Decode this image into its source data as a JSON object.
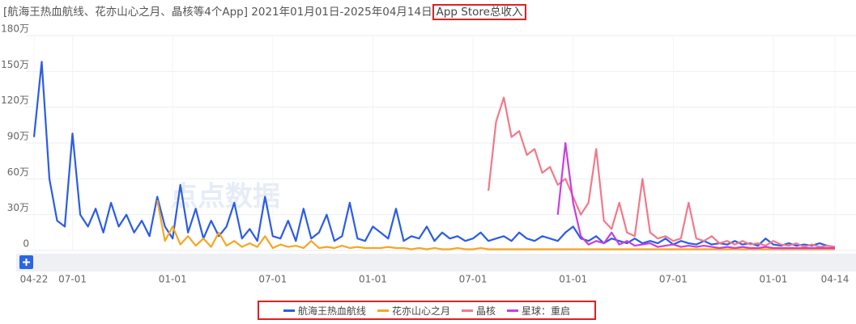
{
  "chart_data": {
    "type": "line",
    "title": "[航海王热血航线、花亦山心之月、晶核等4个App] 2021年01月01日-2025年04月14日",
    "subtitle": "App Store总收入",
    "watermark": "点点数据",
    "categories": [
      "04-22",
      null,
      null,
      null,
      null,
      "07-01",
      null,
      null,
      null,
      null,
      null,
      null,
      null,
      null,
      null,
      null,
      null,
      null,
      "01-01",
      null,
      null,
      null,
      null,
      null,
      null,
      null,
      null,
      null,
      null,
      null,
      null,
      "07-01",
      null,
      null,
      null,
      null,
      null,
      null,
      null,
      null,
      null,
      null,
      null,
      null,
      "01-01",
      null,
      null,
      null,
      null,
      null,
      null,
      null,
      null,
      null,
      null,
      null,
      null,
      "07-01",
      null,
      null,
      null,
      null,
      null,
      null,
      null,
      null,
      null,
      null,
      null,
      null,
      "01-01",
      null,
      null,
      null,
      null,
      null,
      null,
      null,
      null,
      null,
      null,
      null,
      null,
      "07-01",
      null,
      null,
      null,
      null,
      null,
      null,
      null,
      null,
      null,
      null,
      null,
      null,
      "01-01",
      null,
      null,
      null,
      null,
      null,
      null,
      null,
      "04-14"
    ],
    "series": [
      {
        "name": "航海王热血航线",
        "color": "#2b5ce6",
        "values": [
          95,
          158,
          60,
          25,
          20,
          98,
          30,
          20,
          35,
          15,
          40,
          20,
          30,
          15,
          25,
          12,
          45,
          20,
          10,
          55,
          15,
          35,
          10,
          25,
          12,
          20,
          40,
          10,
          18,
          8,
          45,
          12,
          10,
          25,
          8,
          35,
          10,
          15,
          30,
          8,
          12,
          40,
          10,
          8,
          20,
          15,
          10,
          35,
          8,
          12,
          10,
          20,
          8,
          15,
          10,
          12,
          8,
          10,
          15,
          8,
          10,
          12,
          8,
          15,
          10,
          8,
          12,
          10,
          8,
          15,
          20,
          10,
          8,
          12,
          6,
          10,
          8,
          6,
          10,
          6,
          8,
          6,
          10,
          5,
          8,
          6,
          5,
          8,
          5,
          6,
          5,
          8,
          5,
          6,
          4,
          10,
          5,
          4,
          6,
          4,
          5,
          4,
          6,
          4,
          3
        ]
      },
      {
        "name": "花亦山心之月",
        "color": "#f5a623",
        "values": [
          null,
          null,
          null,
          null,
          null,
          null,
          null,
          null,
          null,
          null,
          null,
          null,
          null,
          null,
          null,
          null,
          42,
          8,
          20,
          5,
          12,
          4,
          10,
          3,
          15,
          4,
          8,
          3,
          6,
          3,
          12,
          2,
          5,
          3,
          4,
          2,
          8,
          2,
          3,
          2,
          4,
          2,
          3,
          2,
          2,
          2,
          3,
          2,
          2,
          1,
          2,
          1,
          2,
          1,
          1,
          2,
          1,
          1,
          2,
          1,
          1,
          1,
          1,
          1,
          1,
          1,
          1,
          1,
          1,
          1,
          1,
          1,
          1,
          1,
          1,
          1,
          1,
          1,
          1,
          1,
          1,
          1,
          1,
          1,
          1,
          1,
          1,
          1,
          1,
          1,
          1,
          1,
          1,
          1,
          1,
          1,
          1,
          1,
          1,
          1,
          1,
          1,
          1,
          1,
          1
        ]
      },
      {
        "name": "晶核",
        "color": "#f07a8a",
        "values": [
          null,
          null,
          null,
          null,
          null,
          null,
          null,
          null,
          null,
          null,
          null,
          null,
          null,
          null,
          null,
          null,
          null,
          null,
          null,
          null,
          null,
          null,
          null,
          null,
          null,
          null,
          null,
          null,
          null,
          null,
          null,
          null,
          null,
          null,
          null,
          null,
          null,
          null,
          null,
          null,
          null,
          null,
          null,
          null,
          null,
          null,
          null,
          null,
          null,
          null,
          null,
          null,
          null,
          null,
          null,
          null,
          null,
          null,
          null,
          50,
          108,
          128,
          95,
          100,
          80,
          85,
          65,
          70,
          55,
          60,
          45,
          30,
          40,
          85,
          25,
          18,
          40,
          15,
          12,
          60,
          15,
          10,
          12,
          8,
          10,
          40,
          10,
          8,
          12,
          6,
          8,
          5,
          8,
          5,
          6,
          4,
          8,
          5,
          4,
          6,
          3,
          5,
          3,
          4,
          3
        ]
      },
      {
        "name": "星球：重启",
        "color": "#c83ee0",
        "values": [
          null,
          null,
          null,
          null,
          null,
          null,
          null,
          null,
          null,
          null,
          null,
          null,
          null,
          null,
          null,
          null,
          null,
          null,
          null,
          null,
          null,
          null,
          null,
          null,
          null,
          null,
          null,
          null,
          null,
          null,
          null,
          null,
          null,
          null,
          null,
          null,
          null,
          null,
          null,
          null,
          null,
          null,
          null,
          null,
          null,
          null,
          null,
          null,
          null,
          null,
          null,
          null,
          null,
          null,
          null,
          null,
          null,
          null,
          null,
          null,
          null,
          null,
          null,
          null,
          null,
          null,
          null,
          null,
          30,
          90,
          40,
          12,
          5,
          8,
          6,
          15,
          5,
          8,
          4,
          5,
          6,
          3,
          4,
          5,
          3,
          4,
          3,
          4,
          3,
          2,
          3,
          2,
          3,
          2,
          2,
          3,
          2,
          2,
          2,
          2,
          2,
          2,
          2,
          2,
          2
        ]
      }
    ],
    "ylim": [
      0,
      180
    ],
    "yticks": [
      0,
      {
        "value": 30,
        "label": "30万"
      },
      {
        "value": 60,
        "label": "60万"
      },
      {
        "value": 90,
        "label": "90万"
      },
      {
        "value": 120,
        "label": "120万"
      },
      {
        "value": 150,
        "label": "150万"
      },
      {
        "value": 180,
        "label": "180万"
      }
    ],
    "grid": true
  }
}
